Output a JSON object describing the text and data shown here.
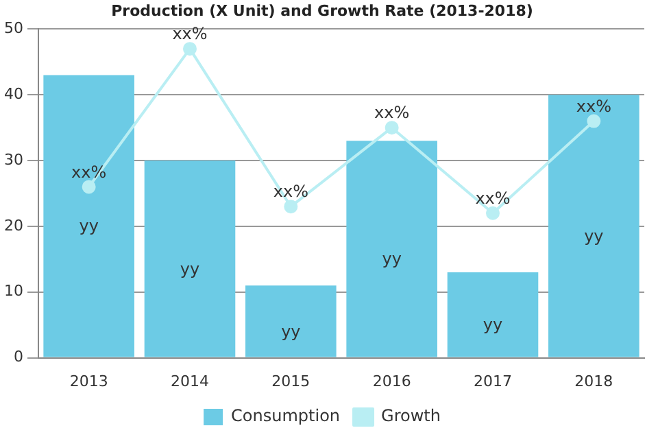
{
  "chart_data": {
    "type": "bar",
    "title": "Production (X Unit) and Growth Rate (2013-2018)",
    "categories": [
      "2013",
      "2014",
      "2015",
      "2016",
      "2017",
      "2018"
    ],
    "series": [
      {
        "name": "Consumption",
        "color": "#6ccbe5",
        "values": [
          43,
          30,
          11,
          33,
          13,
          40
        ],
        "value_labels": [
          "yy",
          "yy",
          "yy",
          "yy",
          "yy",
          "yy"
        ]
      },
      {
        "name": "Growth",
        "type": "line",
        "color": "#b9eef3",
        "marker": "circle",
        "values": [
          26,
          47,
          23,
          35,
          22,
          36
        ],
        "value_labels": [
          "xx%",
          "xx%",
          "xx%",
          "xx%",
          "xx%",
          "xx%"
        ]
      }
    ],
    "ylim": [
      0,
      50
    ],
    "yticks": [
      0,
      10,
      20,
      30,
      40,
      50
    ],
    "grid": "y",
    "legend": "bottom"
  }
}
